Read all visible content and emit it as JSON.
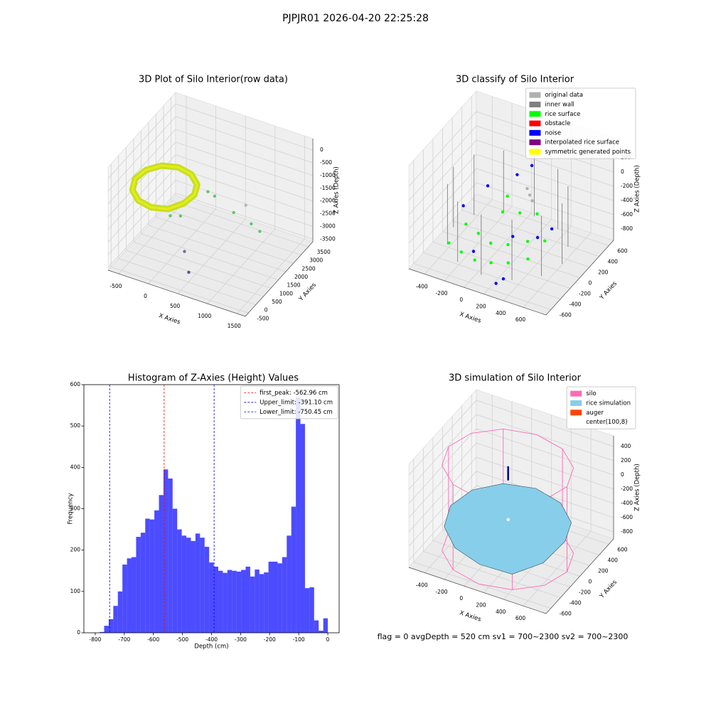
{
  "title": "PJPJR01 2026-04-20 22:25:28",
  "footer": "flag = 0     avgDepth = 520 cm  sv1 = 700~2300  sv2 = 700~2300",
  "chart_data": [
    {
      "type": "scatter3d",
      "title": "3D Plot of Silo Interior(row data)",
      "xlabel": "X Axies",
      "ylabel": "Y Axies",
      "zlabel": "Z Axies (Depth)",
      "xlim": [
        -680,
        1640
      ],
      "ylim": [
        -700,
        3800
      ],
      "zlim": [
        -3600,
        450
      ],
      "xticks": [
        -500,
        0,
        500,
        1000,
        1500
      ],
      "yticks": [
        -500,
        0,
        500,
        1000,
        1500,
        2000,
        2500,
        3000,
        3500
      ],
      "zticks": [
        -3500,
        -3000,
        -2500,
        -2000,
        -1500,
        -1000,
        -500,
        0
      ],
      "series": [
        {
          "style": "ring",
          "color": "#c5e021",
          "x": [
            330,
            263,
            80,
            -170,
            -420,
            -603,
            -670,
            -603,
            -420,
            -170,
            80,
            263
          ],
          "y": [
            1070,
            1520,
            1849,
            1970,
            1849,
            1520,
            1070,
            620,
            291,
            170,
            291,
            620
          ],
          "z": [
            -1000,
            -950,
            -900,
            -900,
            -950,
            -1050,
            -1150,
            -1250,
            -1300,
            -1300,
            -1250,
            -1100
          ]
        },
        {
          "style": "points",
          "colors": [
            "#5ec962",
            "#5ec962",
            "#5ec962",
            "#5ec962",
            "#5ec962",
            "#b5b5b5",
            "#5ec962",
            "#5ec962",
            "#7a6aa8",
            "#5d4f8a"
          ],
          "x": [
            85,
            220,
            320,
            460,
            690,
            880,
            1020,
            1160,
            270,
            390
          ],
          "y": [
            430,
            580,
            2010,
            1910,
            2270,
            2330,
            2140,
            2160,
            650,
            460
          ],
          "z": [
            -1600,
            -1600,
            -1500,
            -1500,
            -2200,
            -1800,
            -2300,
            -2500,
            -3000,
            -3600
          ]
        }
      ]
    },
    {
      "type": "scatter3d",
      "title": "3D classify of Silo Interior",
      "xlabel": "X Axies",
      "ylabel": "Y Axies",
      "zlabel": "Z Axies (Depth)",
      "xlim": [
        -560,
        830
      ],
      "ylim": [
        -700,
        700
      ],
      "zlim": [
        -960,
        490
      ],
      "xticks": [
        -400,
        -200,
        0,
        200,
        400,
        600
      ],
      "yticks": [
        -600,
        -400,
        -200,
        0,
        200,
        400,
        600
      ],
      "zticks": [
        -800,
        -600,
        -400,
        -200,
        0,
        200
      ],
      "legend": "upper right",
      "series": [
        {
          "name": "original data",
          "style": "points",
          "color": "#b0b0b0",
          "x": [
            150,
            200,
            250
          ],
          "y": [
            300,
            250,
            200
          ],
          "z": [
            -250,
            -280,
            -300
          ]
        },
        {
          "name": "inner wall",
          "style": "lines",
          "color": "#808080",
          "x": [
            650,
            650,
            null,
            576,
            576,
            null,
            375,
            375,
            null,
            100,
            100,
            null,
            -175,
            -175,
            null,
            -376,
            -376,
            null,
            -450,
            -450,
            null,
            -376,
            -376,
            null,
            -175,
            -175,
            null,
            100,
            100,
            null,
            375,
            375,
            null,
            576,
            576
          ],
          "y": [
            0,
            0,
            null,
            275,
            275,
            null,
            476,
            476,
            null,
            550,
            550,
            null,
            476,
            476,
            null,
            275,
            275,
            null,
            0,
            0,
            null,
            -275,
            -275,
            null,
            -476,
            -476,
            null,
            -550,
            -550,
            null,
            -476,
            -476,
            null,
            -275,
            -275
          ],
          "z": [
            0,
            -850,
            null,
            0,
            -850,
            null,
            0,
            -850,
            null,
            0,
            -850,
            null,
            0,
            -850,
            null,
            0,
            -850,
            null,
            0,
            -850,
            null,
            0,
            -850,
            null,
            0,
            -850,
            null,
            0,
            -850,
            null,
            0,
            -850,
            null,
            0,
            -850
          ]
        },
        {
          "name": "rice surface",
          "style": "points",
          "color": "#00ff00",
          "x": [
            -300,
            -150,
            0,
            150,
            300,
            450,
            -250,
            -100,
            50,
            200,
            350,
            500,
            0,
            150,
            300,
            -50
          ],
          "y": [
            -400,
            -450,
            -480,
            -450,
            -400,
            -300,
            -150,
            -200,
            -250,
            -200,
            -100,
            -50,
            100,
            150,
            200,
            300
          ],
          "z": [
            -700,
            -720,
            -740,
            -730,
            -700,
            -650,
            -600,
            -620,
            -650,
            -640,
            -600,
            -560,
            -500,
            -480,
            -460,
            -450
          ]
        },
        {
          "name": "obstacle",
          "style": "points",
          "color": "#ff0000",
          "x": [],
          "y": [],
          "z": []
        },
        {
          "name": "noise",
          "style": "points",
          "color": "#0000ff",
          "x": [
            -200,
            0,
            200,
            300,
            -350,
            100,
            400,
            500,
            250,
            -100
          ],
          "y": [
            200,
            400,
            -100,
            -500,
            0,
            500,
            300,
            -200,
            -550,
            -300
          ],
          "z": [
            -300,
            -200,
            -600,
            -850,
            -500,
            -100,
            -700,
            -400,
            -900,
            -800
          ]
        },
        {
          "name": "interpolated rice surface",
          "style": "points",
          "color": "#800080",
          "x": [],
          "y": [],
          "z": []
        },
        {
          "name": "symmetric generated points",
          "style": "points",
          "color": "#ffff00",
          "x": [],
          "y": [],
          "z": []
        }
      ]
    },
    {
      "type": "histogram",
      "title": "Histogram of Z-Axies (Height) Values",
      "xlabel": "Depth (cm)",
      "ylabel": "Frequency",
      "bins": [
        -785,
        -769.3,
        -753.6,
        -737.9,
        -722.2,
        -706.5,
        -690.8,
        -675.1,
        -659.4,
        -643.7,
        -628,
        -612.3,
        -596.6,
        -580.9,
        -565.2,
        -549.5,
        -533.8,
        -518.1,
        -502.4,
        -486.7,
        -471,
        -455.3,
        -439.6,
        -423.9,
        -408.2,
        -392.5,
        -376.8,
        -361.1,
        -345.4,
        -329.7,
        -314,
        -298.3,
        -282.6,
        -266.9,
        -251.2,
        -235.5,
        -219.8,
        -204.1,
        -188.4,
        -172.7,
        -157,
        -141.3,
        -125.6,
        -109.9,
        -94.2,
        -78.5,
        -62.8,
        -47.1,
        -31.4,
        -15.7,
        0
      ],
      "values": [
        2,
        17,
        33,
        65,
        100,
        165,
        180,
        183,
        232,
        242,
        276,
        274,
        296,
        333,
        395,
        373,
        300,
        250,
        235,
        230,
        222,
        240,
        230,
        208,
        170,
        160,
        150,
        145,
        152,
        150,
        148,
        152,
        160,
        136,
        153,
        142,
        146,
        172,
        172,
        168,
        183,
        235,
        305,
        570,
        505,
        108,
        110,
        30,
        5,
        35
      ],
      "color": "#0000ff",
      "alpha": 0.7,
      "xlim": [
        -839,
        39
      ],
      "ylim": [
        0,
        600
      ],
      "xticks": [
        -800,
        -700,
        -600,
        -500,
        -400,
        -300,
        -200,
        -100,
        0
      ],
      "yticks": [
        0,
        100,
        200,
        300,
        400,
        500,
        600
      ],
      "legend": "upper right",
      "vlines": [
        {
          "name": "first_peak: -562.96 cm",
          "value": -562.96,
          "color": "#ff0000"
        },
        {
          "name": "Upper_limit: -391.10 cm",
          "value": -391.1,
          "color": "#0000ff"
        },
        {
          "name": "Lower_limit: -750.45 cm",
          "value": -750.45,
          "color": "#0000ff"
        }
      ]
    },
    {
      "type": "scatter3d",
      "title": "3D simulation of Silo Interior",
      "xlabel": "X Axies",
      "ylabel": "Y Axies",
      "zlabel": "Z Axies (Depth)",
      "xlim": [
        -560,
        830
      ],
      "ylim": [
        -700,
        700
      ],
      "zlim": [
        -900,
        550
      ],
      "xticks": [
        -400,
        -200,
        0,
        200,
        400,
        600
      ],
      "yticks": [
        -600,
        -400,
        -200,
        0,
        200,
        400,
        600
      ],
      "zticks": [
        -800,
        -600,
        -400,
        -200,
        0,
        200,
        400
      ],
      "legend": "upper right",
      "series": [
        {
          "name": "silo",
          "style": "lines",
          "color": "#ff69b4",
          "x": [
            700,
            620,
            400,
            100,
            -200,
            -420,
            -500,
            -420,
            -200,
            100,
            400,
            620,
            700,
            null,
            700,
            620,
            400,
            100,
            -200,
            -420,
            -500,
            -420,
            -200,
            100,
            400,
            620,
            700,
            null,
            700,
            700,
            null,
            400,
            400,
            null,
            -200,
            -200,
            null,
            -500,
            -500,
            null,
            -200,
            -200,
            null,
            400,
            400
          ],
          "y": [
            0,
            300,
            520,
            600,
            520,
            300,
            0,
            -300,
            -520,
            -600,
            -520,
            -300,
            0,
            null,
            0,
            300,
            520,
            600,
            520,
            300,
            0,
            -300,
            -520,
            -600,
            -520,
            -300,
            0,
            null,
            0,
            0,
            null,
            520,
            520,
            null,
            520,
            520,
            null,
            0,
            0,
            null,
            -520,
            -520,
            null,
            -520,
            -520
          ],
          "z": [
            300,
            300,
            300,
            300,
            300,
            300,
            300,
            300,
            300,
            300,
            300,
            300,
            300,
            null,
            -900,
            -900,
            -900,
            -900,
            -900,
            -900,
            -900,
            -900,
            -900,
            -900,
            -900,
            -900,
            -900,
            null,
            300,
            -900,
            null,
            300,
            -900,
            null,
            300,
            -900,
            null,
            300,
            -900,
            null,
            300,
            -900,
            null,
            300,
            -900
          ]
        },
        {
          "name": "rice simulation",
          "style": "surface",
          "color": "#87ceeb",
          "x": [
            680,
            602,
            390,
            100,
            -190,
            -402,
            -480,
            -402,
            -190,
            100,
            390,
            602
          ],
          "y": [
            0,
            290,
            502,
            580,
            502,
            290,
            0,
            -290,
            -502,
            -580,
            -502,
            -290
          ],
          "z": [
            -480,
            -470,
            -450,
            -440,
            -450,
            -480,
            -520,
            -560,
            -600,
            -640,
            -700,
            -600
          ]
        },
        {
          "name": "auger",
          "style": "lines",
          "color": "#ff4500",
          "line_color": "#00008b",
          "x": [
            100,
            100
          ],
          "y": [
            8,
            8
          ],
          "z": [
            300,
            100
          ]
        },
        {
          "name": "center(100,8)",
          "style": "points",
          "color": "#ffffff",
          "x": [
            100
          ],
          "y": [
            8
          ],
          "z": [
            -450
          ]
        }
      ]
    }
  ]
}
